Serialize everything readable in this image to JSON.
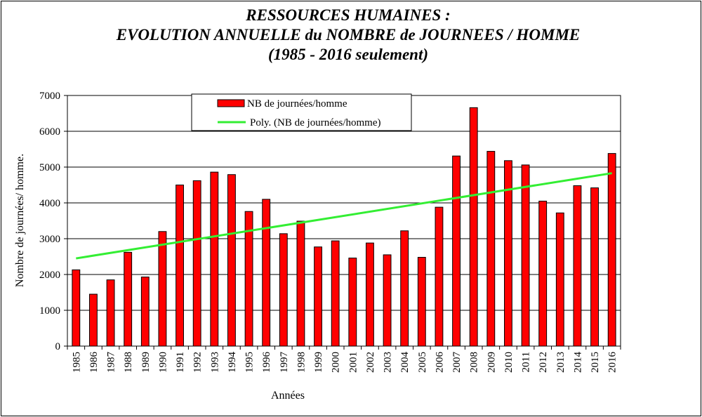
{
  "chart_data": {
    "type": "bar",
    "title": [
      "RESSOURCES HUMAINES :",
      "EVOLUTION ANNUELLE du NOMBRE de JOURNEES / HOMME",
      "(1985 - 2016 seulement)"
    ],
    "xlabel": "Années",
    "ylabel": "Nombre de journées/ homme.",
    "ylim": [
      0,
      7000
    ],
    "yticks": [
      "0",
      "1000",
      "2000",
      "3000",
      "4000",
      "5000",
      "6000",
      "7000"
    ],
    "categories": [
      "1985",
      "1986",
      "1987",
      "1988",
      "1989",
      "1990",
      "1991",
      "1992",
      "1993",
      "1994",
      "1995",
      "1996",
      "1997",
      "1998",
      "1999",
      "2000",
      "2001",
      "2002",
      "2003",
      "2004",
      "2005",
      "2006",
      "2007",
      "2008",
      "2009",
      "2010",
      "2011",
      "2012",
      "2013",
      "2014",
      "2015",
      "2016"
    ],
    "series": [
      {
        "name": "NB de journées/homme",
        "type": "bar",
        "color": "#ff0000",
        "values": [
          2130,
          1450,
          1850,
          2620,
          1930,
          3200,
          4500,
          4620,
          4860,
          4790,
          3760,
          4100,
          3140,
          3490,
          2770,
          2940,
          2460,
          2880,
          2550,
          3220,
          2480,
          3880,
          5310,
          6660,
          5440,
          5180,
          5060,
          4050,
          3720,
          4480,
          4420,
          5380
        ]
      },
      {
        "name": "Poly. (NB de journées/homme)",
        "type": "trendline",
        "color": "#33ee33",
        "start": 2450,
        "end": 4830
      }
    ],
    "legend_position": "top-center"
  }
}
